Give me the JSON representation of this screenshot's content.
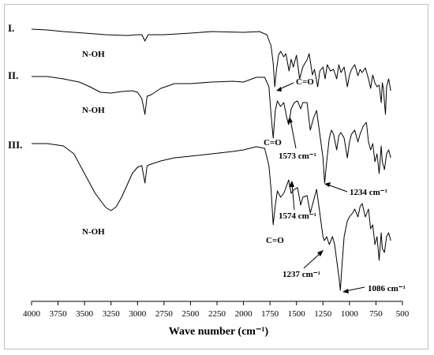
{
  "chart_data": {
    "type": "line",
    "title": "",
    "xlabel": "Wave number (cm⁻¹)",
    "ylabel": "",
    "x_reversed": true,
    "xlim": [
      4000,
      500
    ],
    "x_ticks": [
      "4000",
      "3750",
      "3500",
      "3250",
      "3000",
      "2750",
      "2500",
      "2250",
      "2000",
      "1750",
      "1500",
      "1250",
      "1000",
      "750",
      "500"
    ],
    "series": [
      {
        "name": "I.",
        "points": [
          [
            4000,
            37
          ],
          [
            3850,
            38
          ],
          [
            3700,
            40
          ],
          [
            3500,
            42
          ],
          [
            3300,
            44
          ],
          [
            3100,
            45
          ],
          [
            3000,
            44
          ],
          [
            2960,
            44
          ],
          [
            2930,
            52
          ],
          [
            2900,
            44
          ],
          [
            2750,
            44
          ],
          [
            2500,
            42
          ],
          [
            2300,
            40
          ],
          [
            2000,
            41
          ],
          [
            1850,
            40
          ],
          [
            1780,
            44
          ],
          [
            1740,
            58
          ],
          [
            1720,
            80
          ],
          [
            1705,
            110
          ],
          [
            1690,
            90
          ],
          [
            1670,
            70
          ],
          [
            1650,
            65
          ],
          [
            1620,
            72
          ],
          [
            1600,
            68
          ],
          [
            1570,
            90
          ],
          [
            1550,
            75
          ],
          [
            1530,
            85
          ],
          [
            1500,
            70
          ],
          [
            1470,
            100
          ],
          [
            1440,
            85
          ],
          [
            1420,
            80
          ],
          [
            1400,
            76
          ],
          [
            1380,
            68
          ],
          [
            1350,
            95
          ],
          [
            1330,
            88
          ],
          [
            1300,
            110
          ],
          [
            1280,
            90
          ],
          [
            1250,
            85
          ],
          [
            1230,
            100
          ],
          [
            1210,
            82
          ],
          [
            1180,
            90
          ],
          [
            1150,
            88
          ],
          [
            1120,
            100
          ],
          [
            1100,
            82
          ],
          [
            1080,
            92
          ],
          [
            1050,
            85
          ],
          [
            1020,
            110
          ],
          [
            1000,
            95
          ],
          [
            980,
            88
          ],
          [
            950,
            82
          ],
          [
            920,
            96
          ],
          [
            900,
            88
          ],
          [
            880,
            92
          ],
          [
            850,
            86
          ],
          [
            820,
            100
          ],
          [
            800,
            112
          ],
          [
            780,
            95
          ],
          [
            760,
            105
          ],
          [
            740,
            110
          ],
          [
            720,
            108
          ],
          [
            700,
            130
          ],
          [
            690,
            105
          ],
          [
            680,
            112
          ],
          [
            660,
            145
          ],
          [
            650,
            110
          ],
          [
            630,
            100
          ],
          [
            610,
            115
          ]
        ]
      },
      {
        "name": "II.",
        "points": [
          [
            4000,
            97
          ],
          [
            3850,
            97
          ],
          [
            3700,
            100
          ],
          [
            3550,
            104
          ],
          [
            3450,
            110
          ],
          [
            3350,
            117
          ],
          [
            3250,
            118
          ],
          [
            3150,
            116
          ],
          [
            3050,
            115
          ],
          [
            3000,
            117
          ],
          [
            2960,
            125
          ],
          [
            2930,
            145
          ],
          [
            2910,
            122
          ],
          [
            2870,
            120
          ],
          [
            2780,
            112
          ],
          [
            2650,
            106
          ],
          [
            2500,
            106
          ],
          [
            2300,
            104
          ],
          [
            2100,
            103
          ],
          [
            2000,
            104
          ],
          [
            1880,
            98
          ],
          [
            1800,
            98
          ],
          [
            1760,
            110
          ],
          [
            1740,
            145
          ],
          [
            1720,
            175
          ],
          [
            1700,
            140
          ],
          [
            1680,
            128
          ],
          [
            1650,
            135
          ],
          [
            1620,
            130
          ],
          [
            1590,
            150
          ],
          [
            1573,
            158
          ],
          [
            1550,
            138
          ],
          [
            1520,
            130
          ],
          [
            1490,
            128
          ],
          [
            1460,
            138
          ],
          [
            1440,
            130
          ],
          [
            1400,
            130
          ],
          [
            1370,
            165
          ],
          [
            1340,
            150
          ],
          [
            1310,
            140
          ],
          [
            1280,
            170
          ],
          [
            1250,
            200
          ],
          [
            1234,
            232
          ],
          [
            1215,
            205
          ],
          [
            1190,
            175
          ],
          [
            1170,
            165
          ],
          [
            1150,
            170
          ],
          [
            1120,
            190
          ],
          [
            1100,
            172
          ],
          [
            1080,
            168
          ],
          [
            1050,
            175
          ],
          [
            1020,
            200
          ],
          [
            1000,
            180
          ],
          [
            980,
            170
          ],
          [
            950,
            165
          ],
          [
            920,
            180
          ],
          [
            900,
            170
          ],
          [
            870,
            160
          ],
          [
            840,
            155
          ],
          [
            820,
            180
          ],
          [
            800,
            190
          ],
          [
            780,
            182
          ],
          [
            760,
            205
          ],
          [
            740,
            195
          ],
          [
            720,
            220
          ],
          [
            700,
            185
          ],
          [
            690,
            205
          ],
          [
            670,
            215
          ],
          [
            650,
            195
          ],
          [
            630,
            190
          ],
          [
            610,
            200
          ]
        ]
      },
      {
        "name": "III.",
        "points": [
          [
            4000,
            182
          ],
          [
            3850,
            182
          ],
          [
            3700,
            185
          ],
          [
            3600,
            195
          ],
          [
            3500,
            220
          ],
          [
            3400,
            245
          ],
          [
            3300,
            263
          ],
          [
            3250,
            267
          ],
          [
            3200,
            262
          ],
          [
            3150,
            250
          ],
          [
            3100,
            235
          ],
          [
            3050,
            220
          ],
          [
            3000,
            212
          ],
          [
            2960,
            210
          ],
          [
            2930,
            232
          ],
          [
            2910,
            210
          ],
          [
            2870,
            208
          ],
          [
            2780,
            204
          ],
          [
            2650,
            200
          ],
          [
            2500,
            198
          ],
          [
            2300,
            195
          ],
          [
            2100,
            192
          ],
          [
            2000,
            190
          ],
          [
            1880,
            186
          ],
          [
            1800,
            188
          ],
          [
            1760,
            210
          ],
          [
            1740,
            240
          ],
          [
            1720,
            285
          ],
          [
            1700,
            260
          ],
          [
            1680,
            242
          ],
          [
            1650,
            250
          ],
          [
            1620,
            245
          ],
          [
            1600,
            238
          ],
          [
            1574,
            228
          ],
          [
            1550,
            245
          ],
          [
            1520,
            240
          ],
          [
            1490,
            238
          ],
          [
            1460,
            260
          ],
          [
            1440,
            250
          ],
          [
            1400,
            248
          ],
          [
            1370,
            270
          ],
          [
            1340,
            255
          ],
          [
            1310,
            240
          ],
          [
            1280,
            270
          ],
          [
            1250,
            300
          ],
          [
            1237,
            305
          ],
          [
            1215,
            300
          ],
          [
            1190,
            310
          ],
          [
            1160,
            300
          ],
          [
            1140,
            310
          ],
          [
            1120,
            330
          ],
          [
            1100,
            350
          ],
          [
            1086,
            368
          ],
          [
            1070,
            335
          ],
          [
            1050,
            300
          ],
          [
            1020,
            280
          ],
          [
            1000,
            275
          ],
          [
            970,
            270
          ],
          [
            950,
            265
          ],
          [
            920,
            275
          ],
          [
            900,
            262
          ],
          [
            880,
            258
          ],
          [
            850,
            275
          ],
          [
            820,
            265
          ],
          [
            800,
            290
          ],
          [
            780,
            285
          ],
          [
            760,
            310
          ],
          [
            740,
            300
          ],
          [
            720,
            330
          ],
          [
            700,
            295
          ],
          [
            690,
            315
          ],
          [
            670,
            320
          ],
          [
            650,
            300
          ],
          [
            630,
            295
          ],
          [
            610,
            305
          ]
        ]
      }
    ],
    "annotations": {
      "noh_1": "N-OH",
      "noh_2": "N-OH",
      "noh_3": "N-OH",
      "co_1": "C=O",
      "co_2": "C=O",
      "co_3": "C=O",
      "a1573": "1573 cm⁻¹",
      "a1234": "1234 cm⁻¹",
      "a1574": "1574 cm⁻¹",
      "a1237": "1237 cm⁻¹",
      "a1086": "1086 cm⁻¹"
    },
    "grid": false,
    "legend": "none"
  }
}
